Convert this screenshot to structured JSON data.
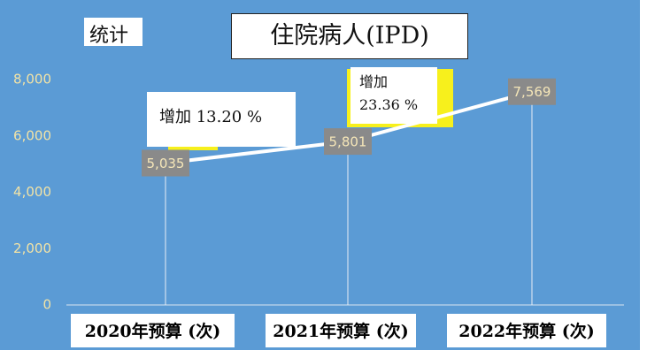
{
  "label": "统计",
  "chart_data": {
    "type": "line",
    "title": "住院病人(IPD)",
    "categories": [
      "2020年预算 (次)",
      "2021年预算 (次)",
      "2022年预算 (次)"
    ],
    "values": [
      5035,
      5801,
      7569
    ],
    "value_labels": [
      "5,035",
      "5,801",
      "7,569"
    ],
    "color": "#ffffff",
    "ylim": [
      0,
      8000
    ],
    "yticks": [
      0,
      {
        "value": 2000,
        "label": "2,000"
      },
      {
        "value": 4000,
        "label": "4,000"
      },
      {
        "value": 6000,
        "label": "6,000"
      },
      {
        "value": 8000,
        "label": "8,000"
      }
    ],
    "annotations": [
      "增加 13.20 %",
      "增加 23.36 %"
    ]
  }
}
